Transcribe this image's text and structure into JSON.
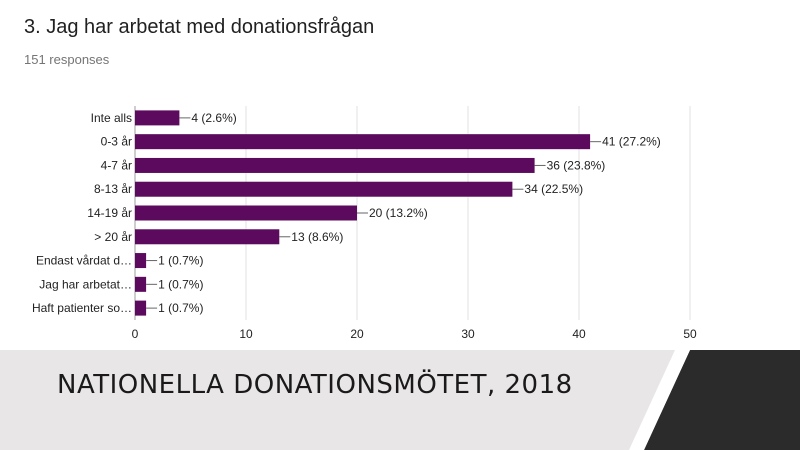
{
  "chart_data": {
    "type": "bar",
    "orientation": "horizontal",
    "title": "3. Jag har arbetat med donationsfrågan",
    "subtitle": "151 responses",
    "categories": [
      "Inte alls",
      "0-3 år",
      "4-7 år",
      "8-13 år",
      "14-19 år",
      "> 20 år",
      "Endast vårdat d…",
      "Jag har arbetat…",
      "Haft patienter so…"
    ],
    "values": [
      4,
      41,
      36,
      34,
      20,
      13,
      1,
      1,
      1
    ],
    "data_labels": [
      "4 (2.6%)",
      "41 (27.2%)",
      "36 (23.8%)",
      "34 (22.5%)",
      "20 (13.2%)",
      "13 (8.6%)",
      "1 (0.7%)",
      "1 (0.7%)",
      "1 (0.7%)"
    ],
    "xlim": [
      0,
      50
    ],
    "xticks": [
      0,
      10,
      20,
      30,
      40,
      50
    ],
    "grid": true,
    "legend": "none",
    "bar_color": "#5c0a5e",
    "grid_color": "#e0e0e0"
  },
  "footer": {
    "text": "NATIONELLA DONATIONSMÖTET, 2018",
    "band_color": "#e8e6e6",
    "accent_color": "#2b2b2b"
  }
}
